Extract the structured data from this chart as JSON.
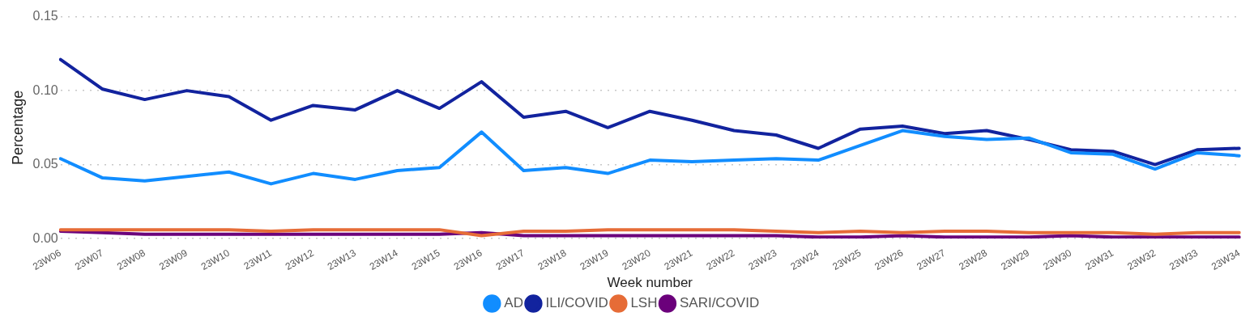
{
  "chart_data": {
    "type": "line",
    "xlabel": "Week number",
    "ylabel": "Percentage",
    "categories": [
      "23W06",
      "23W07",
      "23W08",
      "23W09",
      "23W10",
      "23W11",
      "23W12",
      "23W13",
      "23W14",
      "23W15",
      "23W16",
      "23W17",
      "23W18",
      "23W19",
      "23W20",
      "23W21",
      "23W22",
      "23W23",
      "23W24",
      "23W25",
      "23W26",
      "23W27",
      "23W28",
      "23W29",
      "23W30",
      "23W31",
      "23W32",
      "23W33",
      "23W34"
    ],
    "series": [
      {
        "name": "AD",
        "color": "#118dff",
        "values": [
          0.054,
          0.041,
          0.039,
          0.042,
          0.045,
          0.037,
          0.044,
          0.04,
          0.046,
          0.048,
          0.072,
          0.046,
          0.048,
          0.044,
          0.053,
          0.052,
          0.053,
          0.054,
          0.053,
          0.063,
          0.073,
          0.069,
          0.067,
          0.068,
          0.058,
          0.057,
          0.047,
          0.058,
          0.056
        ]
      },
      {
        "name": "ILI/COVID",
        "color": "#12239e",
        "values": [
          0.121,
          0.101,
          0.094,
          0.1,
          0.096,
          0.08,
          0.09,
          0.087,
          0.1,
          0.088,
          0.106,
          0.082,
          0.086,
          0.075,
          0.086,
          0.08,
          0.073,
          0.07,
          0.061,
          0.074,
          0.076,
          0.071,
          0.073,
          0.067,
          0.06,
          0.059,
          0.05,
          0.06,
          0.061
        ]
      },
      {
        "name": "LSH",
        "color": "#e66c37",
        "values": [
          0.006,
          0.006,
          0.006,
          0.006,
          0.006,
          0.005,
          0.006,
          0.006,
          0.006,
          0.006,
          0.002,
          0.005,
          0.005,
          0.006,
          0.006,
          0.006,
          0.006,
          0.005,
          0.004,
          0.005,
          0.004,
          0.005,
          0.005,
          0.004,
          0.004,
          0.004,
          0.003,
          0.004,
          0.004
        ]
      },
      {
        "name": "SARI/COVID",
        "color": "#6b007b",
        "values": [
          0.005,
          0.004,
          0.003,
          0.003,
          0.003,
          0.003,
          0.003,
          0.003,
          0.003,
          0.003,
          0.004,
          0.002,
          0.002,
          0.002,
          0.002,
          0.002,
          0.002,
          0.002,
          0.001,
          0.001,
          0.002,
          0.001,
          0.001,
          0.001,
          0.002,
          0.001,
          0.001,
          0.001,
          0.001
        ]
      }
    ],
    "ylim": [
      0,
      0.15
    ],
    "yticks": [
      {
        "value": 0,
        "label": "0.00"
      },
      {
        "value": 0.05,
        "label": "0.05"
      },
      {
        "value": 0.1,
        "label": "0.10"
      },
      {
        "value": 0.15,
        "label": "0.15"
      }
    ],
    "grid": "y",
    "legend": "bottom",
    "marker": "none",
    "line_style": "solid"
  }
}
